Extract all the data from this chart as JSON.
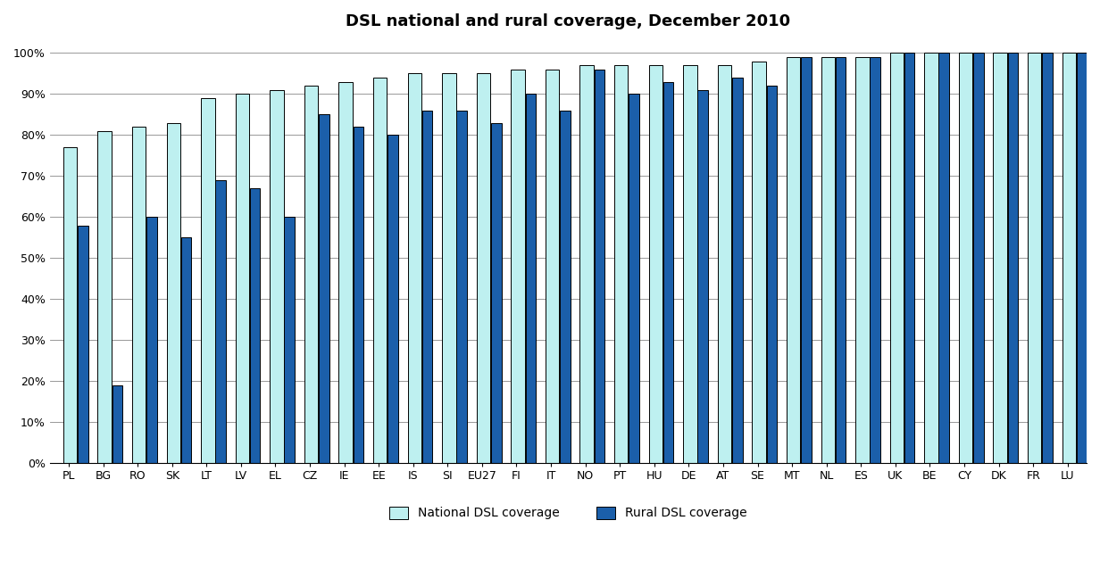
{
  "title": "DSL national and rural coverage, December 2010",
  "categories": [
    "PL",
    "BG",
    "RO",
    "SK",
    "LT",
    "LV",
    "EL",
    "CZ",
    "IE",
    "EE",
    "IS",
    "SI",
    "EU27",
    "FI",
    "IT",
    "NO",
    "PT",
    "HU",
    "DE",
    "AT",
    "SE",
    "MT",
    "NL",
    "ES",
    "UK",
    "BE",
    "CY",
    "DK",
    "FR",
    "LU"
  ],
  "national": [
    77,
    81,
    82,
    83,
    89,
    90,
    91,
    92,
    93,
    94,
    95,
    95,
    95,
    96,
    96,
    97,
    97,
    97,
    97,
    97,
    98,
    99,
    99,
    99,
    100,
    100,
    100,
    100,
    100,
    100
  ],
  "rural": [
    58,
    19,
    60,
    55,
    69,
    67,
    60,
    85,
    82,
    80,
    86,
    86,
    83,
    90,
    86,
    96,
    90,
    93,
    91,
    94,
    92,
    99,
    99,
    99,
    100,
    100,
    100,
    100,
    100,
    100
  ],
  "national_color": "#bef0f0",
  "rural_color": "#1b5faa",
  "bar_edge_color": "#000000",
  "background_color": "#ffffff",
  "ylim_max": 103,
  "yticks": [
    0,
    10,
    20,
    30,
    40,
    50,
    60,
    70,
    80,
    90,
    100
  ],
  "ytick_labels": [
    "0%",
    "10%",
    "20%",
    "30%",
    "40%",
    "50%",
    "60%",
    "70%",
    "80%",
    "90%",
    "100%"
  ],
  "legend_national": "National DSL coverage",
  "legend_rural": "Rural DSL coverage",
  "title_fontsize": 13,
  "tick_fontsize": 9,
  "legend_fontsize": 10
}
